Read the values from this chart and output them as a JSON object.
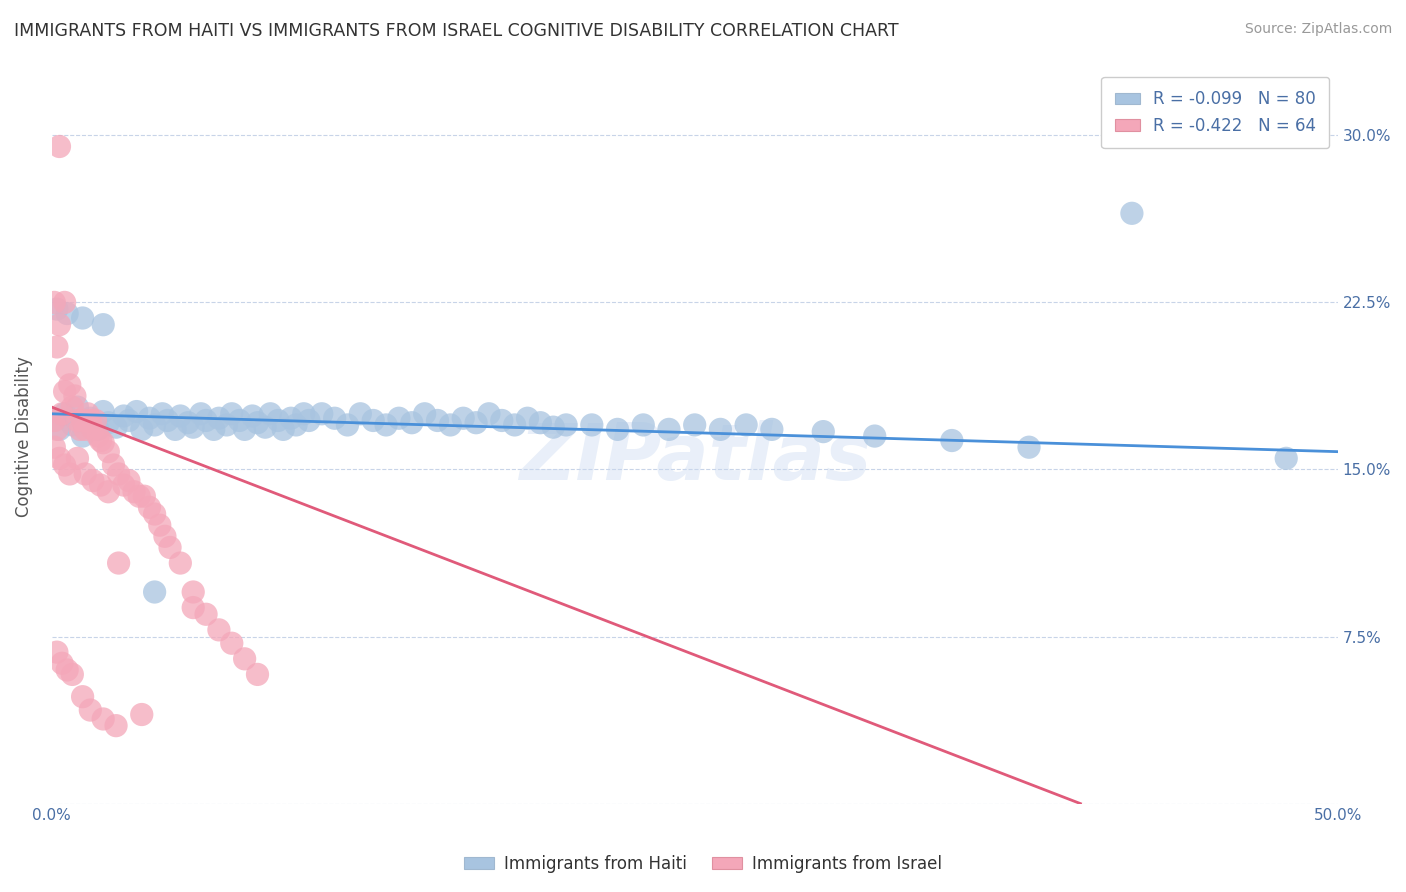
{
  "title": "IMMIGRANTS FROM HAITI VS IMMIGRANTS FROM ISRAEL COGNITIVE DISABILITY CORRELATION CHART",
  "source": "Source: ZipAtlas.com",
  "xlabel_haiti": "Immigrants from Haiti",
  "xlabel_israel": "Immigrants from Israel",
  "ylabel": "Cognitive Disability",
  "r_haiti": -0.099,
  "n_haiti": 80,
  "r_israel": -0.422,
  "n_israel": 64,
  "xlim": [
    0.0,
    0.5
  ],
  "ylim": [
    0.0,
    0.33
  ],
  "xticks": [
    0.0,
    0.125,
    0.25,
    0.375,
    0.5
  ],
  "xticklabels": [
    "0.0%",
    "",
    "",
    "",
    "50.0%"
  ],
  "yticks": [
    0.0,
    0.075,
    0.15,
    0.225,
    0.3
  ],
  "yticklabels": [
    "",
    "7.5%",
    "15.0%",
    "22.5%",
    "30.0%"
  ],
  "color_haiti": "#a8c4e0",
  "color_israel": "#f4a7b9",
  "line_color_haiti": "#4a90d9",
  "line_color_israel": "#e05a7a",
  "watermark": "ZIPatlas",
  "background_color": "#ffffff",
  "grid_color": "#c8d4e8",
  "haiti_x": [
    0.001,
    0.003,
    0.005,
    0.008,
    0.01,
    0.012,
    0.015,
    0.018,
    0.02,
    0.022,
    0.025,
    0.028,
    0.03,
    0.033,
    0.035,
    0.038,
    0.04,
    0.043,
    0.045,
    0.048,
    0.05,
    0.053,
    0.055,
    0.058,
    0.06,
    0.063,
    0.065,
    0.068,
    0.07,
    0.073,
    0.075,
    0.078,
    0.08,
    0.083,
    0.085,
    0.088,
    0.09,
    0.093,
    0.095,
    0.098,
    0.1,
    0.105,
    0.11,
    0.115,
    0.12,
    0.125,
    0.13,
    0.135,
    0.14,
    0.145,
    0.15,
    0.155,
    0.16,
    0.165,
    0.17,
    0.175,
    0.18,
    0.185,
    0.19,
    0.195,
    0.2,
    0.21,
    0.22,
    0.23,
    0.24,
    0.25,
    0.26,
    0.27,
    0.28,
    0.3,
    0.32,
    0.35,
    0.38,
    0.002,
    0.006,
    0.012,
    0.02,
    0.04,
    0.42,
    0.48
  ],
  "haiti_y": [
    0.172,
    0.168,
    0.175,
    0.17,
    0.178,
    0.165,
    0.173,
    0.168,
    0.176,
    0.171,
    0.169,
    0.174,
    0.172,
    0.176,
    0.168,
    0.173,
    0.17,
    0.175,
    0.172,
    0.168,
    0.174,
    0.171,
    0.169,
    0.175,
    0.172,
    0.168,
    0.173,
    0.17,
    0.175,
    0.172,
    0.168,
    0.174,
    0.171,
    0.169,
    0.175,
    0.172,
    0.168,
    0.173,
    0.17,
    0.175,
    0.172,
    0.175,
    0.173,
    0.17,
    0.175,
    0.172,
    0.17,
    0.173,
    0.171,
    0.175,
    0.172,
    0.17,
    0.173,
    0.171,
    0.175,
    0.172,
    0.17,
    0.173,
    0.171,
    0.169,
    0.17,
    0.17,
    0.168,
    0.17,
    0.168,
    0.17,
    0.168,
    0.17,
    0.168,
    0.167,
    0.165,
    0.163,
    0.16,
    0.222,
    0.22,
    0.218,
    0.215,
    0.095,
    0.265,
    0.155
  ],
  "israel_x": [
    0.001,
    0.002,
    0.003,
    0.004,
    0.005,
    0.006,
    0.007,
    0.008,
    0.009,
    0.01,
    0.011,
    0.012,
    0.013,
    0.014,
    0.015,
    0.016,
    0.017,
    0.018,
    0.019,
    0.02,
    0.022,
    0.024,
    0.026,
    0.028,
    0.03,
    0.032,
    0.034,
    0.036,
    0.038,
    0.04,
    0.042,
    0.044,
    0.046,
    0.05,
    0.055,
    0.06,
    0.065,
    0.07,
    0.075,
    0.08,
    0.001,
    0.003,
    0.005,
    0.007,
    0.01,
    0.013,
    0.016,
    0.019,
    0.022,
    0.026,
    0.002,
    0.004,
    0.006,
    0.008,
    0.012,
    0.015,
    0.02,
    0.025,
    0.001,
    0.002,
    0.003,
    0.005,
    0.035,
    0.055
  ],
  "israel_y": [
    0.172,
    0.168,
    0.295,
    0.175,
    0.185,
    0.195,
    0.188,
    0.178,
    0.183,
    0.172,
    0.168,
    0.172,
    0.168,
    0.175,
    0.172,
    0.168,
    0.172,
    0.165,
    0.163,
    0.162,
    0.158,
    0.152,
    0.148,
    0.143,
    0.145,
    0.14,
    0.138,
    0.138,
    0.133,
    0.13,
    0.125,
    0.12,
    0.115,
    0.108,
    0.095,
    0.085,
    0.078,
    0.072,
    0.065,
    0.058,
    0.16,
    0.155,
    0.152,
    0.148,
    0.155,
    0.148,
    0.145,
    0.143,
    0.14,
    0.108,
    0.068,
    0.063,
    0.06,
    0.058,
    0.048,
    0.042,
    0.038,
    0.035,
    0.225,
    0.205,
    0.215,
    0.225,
    0.04,
    0.088
  ],
  "haiti_line_x0": 0.0,
  "haiti_line_x1": 0.5,
  "haiti_line_y0": 0.175,
  "haiti_line_y1": 0.158,
  "israel_line_x0": 0.0,
  "israel_line_x1": 0.4,
  "israel_line_y0": 0.178,
  "israel_line_y1": 0.0
}
